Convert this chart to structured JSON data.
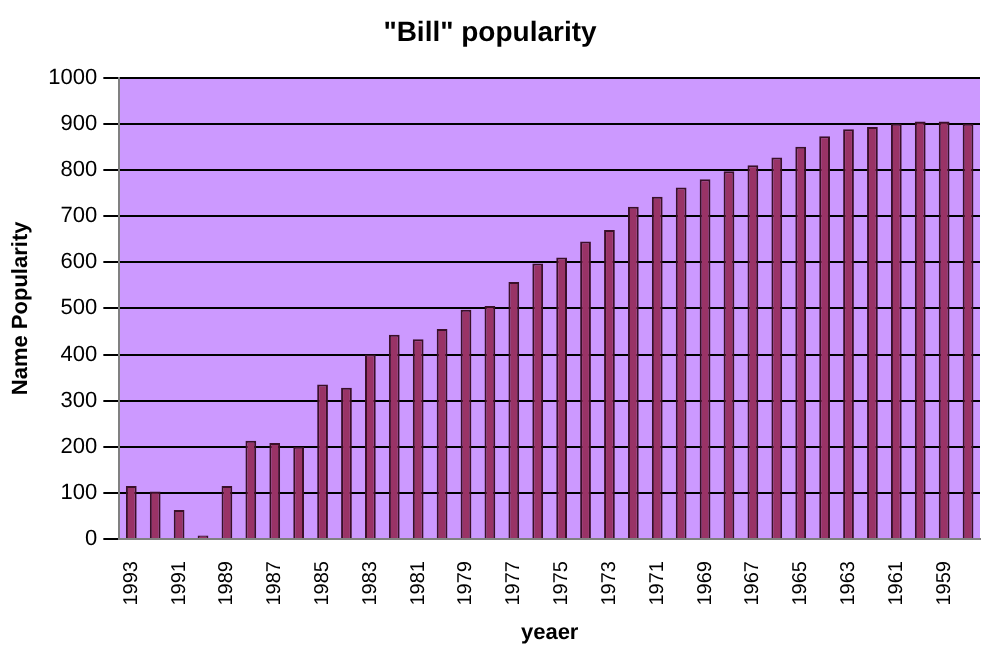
{
  "chart_data": {
    "type": "bar",
    "title": "\"Bill\" popularity",
    "xlabel": "yeaer",
    "ylabel": "Name Popularity",
    "categories": [
      "1993",
      null,
      "1991",
      null,
      "1989",
      null,
      "1987",
      null,
      "1985",
      null,
      "1983",
      null,
      "1981",
      null,
      "1979",
      null,
      "1977",
      null,
      "1975",
      null,
      "1973",
      null,
      "1971",
      null,
      "1969",
      null,
      "1967",
      null,
      "1965",
      null,
      "1963",
      null,
      "1961",
      null,
      "1959",
      null
    ],
    "values": [
      115,
      103,
      63,
      8,
      115,
      213,
      208,
      200,
      335,
      328,
      400,
      443,
      433,
      455,
      497,
      505,
      557,
      597,
      610,
      645,
      670,
      720,
      742,
      762,
      780,
      797,
      810,
      827,
      850,
      873,
      888,
      893,
      900,
      905,
      905,
      900
    ],
    "color": "#993366",
    "ylim": [
      0,
      1000
    ],
    "yticks": [
      0,
      100,
      200,
      300,
      400,
      500,
      600,
      700,
      800,
      900,
      1000
    ],
    "grid": "y"
  }
}
